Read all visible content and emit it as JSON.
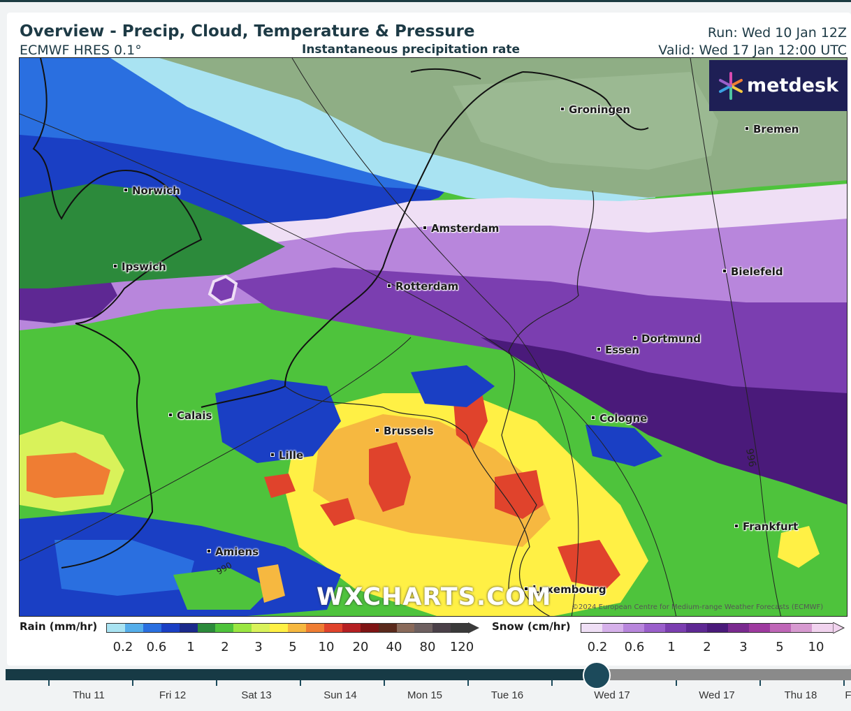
{
  "header": {
    "title": "Overview - Precip, Cloud, Temperature & Pressure",
    "model": "ECMWF HRES 0.1°",
    "subtitle": "Instantaneous precipitation rate",
    "run": "Run: Wed 10 Jan 12Z",
    "valid": "Valid: Wed 17 Jan 12:00 UTC"
  },
  "map": {
    "logo": "metdesk",
    "watermark": "WXCHARTS.COM",
    "copyright": "©2024 European Centre for Medium-range Weather Forecasts (ECMWF)",
    "isobar_labels": [
      "996",
      "990"
    ],
    "cities": [
      "Groningen",
      "Bremen",
      "Norwich",
      "Amsterdam",
      "Ipswich",
      "Bielefeld",
      "Rotterdam",
      "Dortmund",
      "Essen",
      "Calais",
      "Cologne",
      "Brussels",
      "Lille",
      "Frankfurt",
      "Amiens",
      "Luxembourg"
    ]
  },
  "legend": {
    "rain": {
      "label": "Rain (mm/hr)",
      "ticks": [
        "0.2",
        "0.6",
        "1",
        "2",
        "3",
        "5",
        "10",
        "20",
        "40",
        "80",
        "120"
      ],
      "colors": [
        "#a9e3f2",
        "#55aeea",
        "#2a6fe0",
        "#1a3fc4",
        "#1b2a8c",
        "#2c8a3b",
        "#4ec33c",
        "#9ae642",
        "#d9f25a",
        "#fff045",
        "#f6b840",
        "#ef7d33",
        "#e0432c",
        "#b51f22",
        "#7f1414",
        "#5b2a1c",
        "#8a6a5a",
        "#6e6060",
        "#4a4048",
        "#3a3a3a"
      ]
    },
    "snow": {
      "label": "Snow (cm/hr)",
      "ticks": [
        "0.2",
        "0.6",
        "1",
        "2",
        "3",
        "5",
        "10"
      ],
      "colors": [
        "#efdff5",
        "#d6b1ea",
        "#b886dc",
        "#9a5fcb",
        "#7b3eb0",
        "#5e2893",
        "#4a1a7a",
        "#7a2a8f",
        "#9e3a9f",
        "#bf66b7",
        "#d79ad0",
        "#f1d3ee"
      ]
    }
  },
  "timeline": {
    "progress": 0.7,
    "days": [
      "Thu 11",
      "Fri 12",
      "Sat 13",
      "Sun 14",
      "Mon 15",
      "Tue 16",
      "Wed 17",
      "Wed 17",
      "Thu 18",
      "F"
    ]
  }
}
